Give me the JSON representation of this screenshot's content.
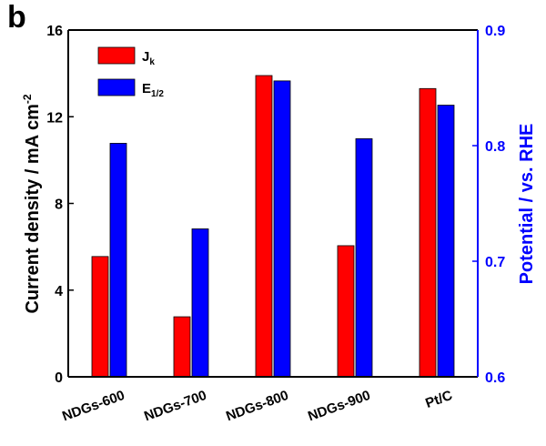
{
  "chart_data": {
    "type": "bar",
    "panel_label": "b",
    "ylabel": "Current density / mA cm",
    "ylabel_superscript": "-2",
    "y2label": "Potential / vs. RHE",
    "categories": [
      "NDGs-600",
      "NDGs-700",
      "NDGs-800",
      "NDGs-900",
      "Pt/C"
    ],
    "series": [
      {
        "name": "J",
        "name_subscript": "k",
        "color": "#ff0000",
        "values": [
          5.55,
          2.77,
          13.9,
          6.05,
          13.3
        ]
      },
      {
        "name": "E",
        "name_subscript": "1/2",
        "color": "#0000ff",
        "axis": "y2",
        "values": [
          0.802,
          0.728,
          0.856,
          0.806,
          0.835
        ]
      }
    ],
    "ylim": [
      0,
      16
    ],
    "yticks": [
      0,
      4,
      8,
      12,
      16
    ],
    "y2lim": [
      0.6,
      0.9
    ],
    "y2ticks": [
      0.6,
      0.7,
      0.8,
      0.9
    ],
    "y2color": "#0000ff",
    "legend": "upper-left"
  }
}
